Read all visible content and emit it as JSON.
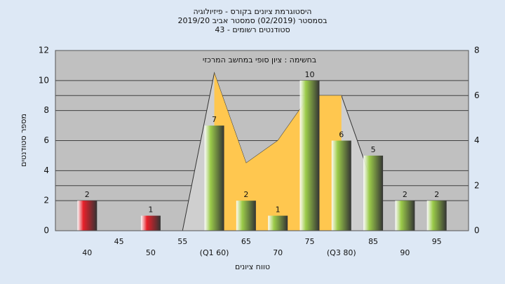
{
  "chart_data": {
    "type": "bar",
    "title_lines": [
      "היסטוגרמת ציונים בקורס - פיזיולוגיה",
      "בסמסטר  (02/2019)  סמסטר אביב 2019/20",
      "סטודנטים רשומים - 43"
    ],
    "annotation": "בחשימה : ציון סופי במחשב המרכזי",
    "x_label": "טווח ציונים",
    "y_label": "מספר סטודנטים",
    "categories": [
      "40",
      "45",
      "50",
      "55",
      "(Q1 60)",
      "65",
      "70",
      "75",
      "(Q3 80)",
      "85",
      "90",
      "95"
    ],
    "series": [
      {
        "type": "bar",
        "values": [
          2,
          null,
          1,
          null,
          7,
          2,
          1,
          10,
          6,
          5,
          2,
          2
        ],
        "colors": [
          "#e8202a",
          null,
          "#e8202a",
          null,
          "#9ccc4a",
          "#9ccc4a",
          "#9ccc4a",
          "#9ccc4a",
          "#9ccc4a",
          "#9ccc4a",
          "#9ccc4a",
          "#9ccc4a"
        ]
      },
      {
        "type": "area",
        "axis": "y2",
        "color": "#cfcfcf",
        "values": [
          null,
          null,
          null,
          0,
          7,
          3,
          4,
          6,
          6,
          2,
          null,
          null
        ]
      },
      {
        "type": "area",
        "axis": "y2",
        "color": "#ffc74f",
        "values": [
          null,
          null,
          null,
          null,
          7,
          3,
          4,
          6,
          6,
          null,
          null,
          null
        ]
      }
    ],
    "ylim": [
      0,
      12
    ],
    "yticks": [
      0,
      2,
      4,
      6,
      8,
      10,
      12
    ],
    "y2lim": [
      0,
      8
    ],
    "y2ticks": [
      0,
      2,
      4,
      6,
      8
    ],
    "grid": true
  }
}
